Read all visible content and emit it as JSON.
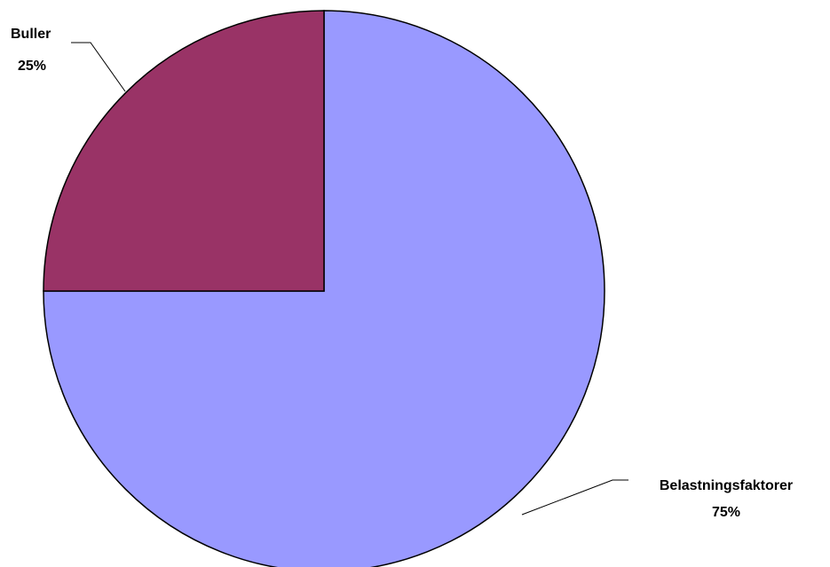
{
  "chart_data": {
    "type": "pie",
    "slices": [
      {
        "label": "Belastningsfaktorer",
        "value": 75,
        "value_label": "75%",
        "color": "#9999FF"
      },
      {
        "label": "Buller",
        "value": 25,
        "value_label": "25%",
        "color": "#993366"
      }
    ],
    "start": "12 o'clock, clockwise",
    "legend": "none"
  }
}
